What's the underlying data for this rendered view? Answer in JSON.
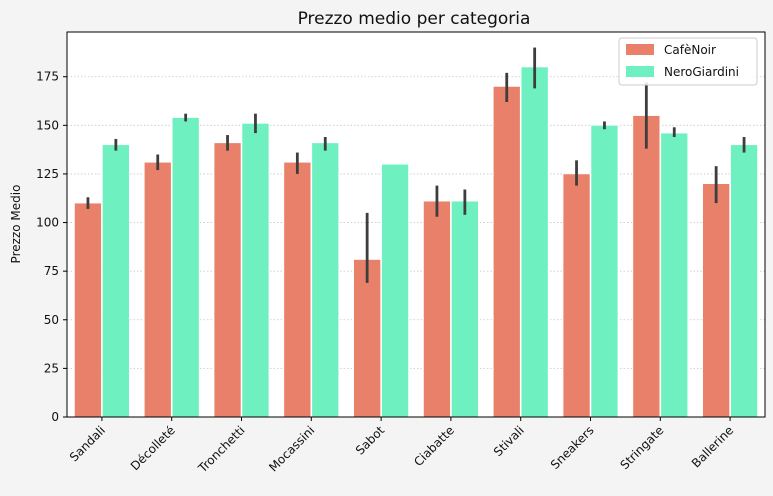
{
  "chart_data": {
    "type": "bar",
    "title": "Prezzo medio per categoria",
    "xlabel": "",
    "ylabel": "Prezzo Medio",
    "ylim": [
      0,
      198
    ],
    "yticks": [
      0,
      25,
      50,
      75,
      100,
      125,
      150,
      175
    ],
    "grid": "horizontal dotted",
    "legend_position": "top-right",
    "categories": [
      "Sandali",
      "Décolleté",
      "Tronchetti",
      "Mocassini",
      "Sabot",
      "Ciabatte",
      "Stivali",
      "Sneakers",
      "Stringate",
      "Ballerine"
    ],
    "series": [
      {
        "name": "CafèNoir",
        "color": "#e8806a",
        "values": [
          110,
          131,
          141,
          131,
          81,
          111,
          170,
          125,
          155,
          120
        ],
        "err_low": [
          107,
          127,
          137,
          125,
          69,
          103,
          162,
          119,
          138,
          110
        ],
        "err_high": [
          113,
          135,
          145,
          136,
          105,
          119,
          177,
          132,
          172,
          129
        ]
      },
      {
        "name": "NeroGiardini",
        "color": "#6ff0c0",
        "values": [
          140,
          154,
          151,
          141,
          130,
          111,
          180,
          150,
          146,
          140
        ],
        "err_low": [
          137,
          152,
          146,
          137,
          130,
          104,
          169,
          148,
          144,
          136
        ],
        "err_high": [
          143,
          156,
          156,
          144,
          130,
          117,
          190,
          152,
          149,
          144
        ]
      }
    ]
  }
}
